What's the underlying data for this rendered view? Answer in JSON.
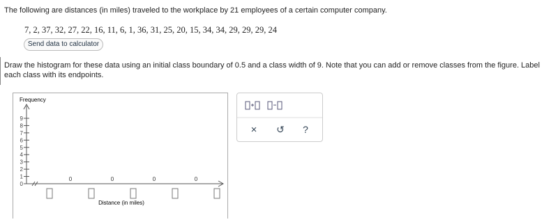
{
  "question": {
    "intro": "The following are distances (in miles) traveled to the workplace by 21 employees of a certain computer company.",
    "data": "7, 2, 37, 32, 27, 22, 16, 11, 6, 1, 36, 31, 25, 20, 15, 34, 34, 29, 29, 29, 24",
    "button": "Send data to calculator",
    "instructions": "Draw the histogram for these data using an initial class boundary of 0.5 and a class width of 9. Note that you can add or remove classes from the figure. Label each class with its endpoints."
  },
  "graph": {
    "y_label": "Frequency",
    "x_label": "Distance (in miles)",
    "ylim": [
      0,
      9
    ],
    "yticks": [
      0,
      1,
      2,
      3,
      4,
      5,
      6,
      7,
      8,
      9
    ],
    "bars": [
      0,
      0,
      0,
      0
    ]
  },
  "toolbox": {
    "close": "×",
    "reset": "↺",
    "help": "?"
  }
}
